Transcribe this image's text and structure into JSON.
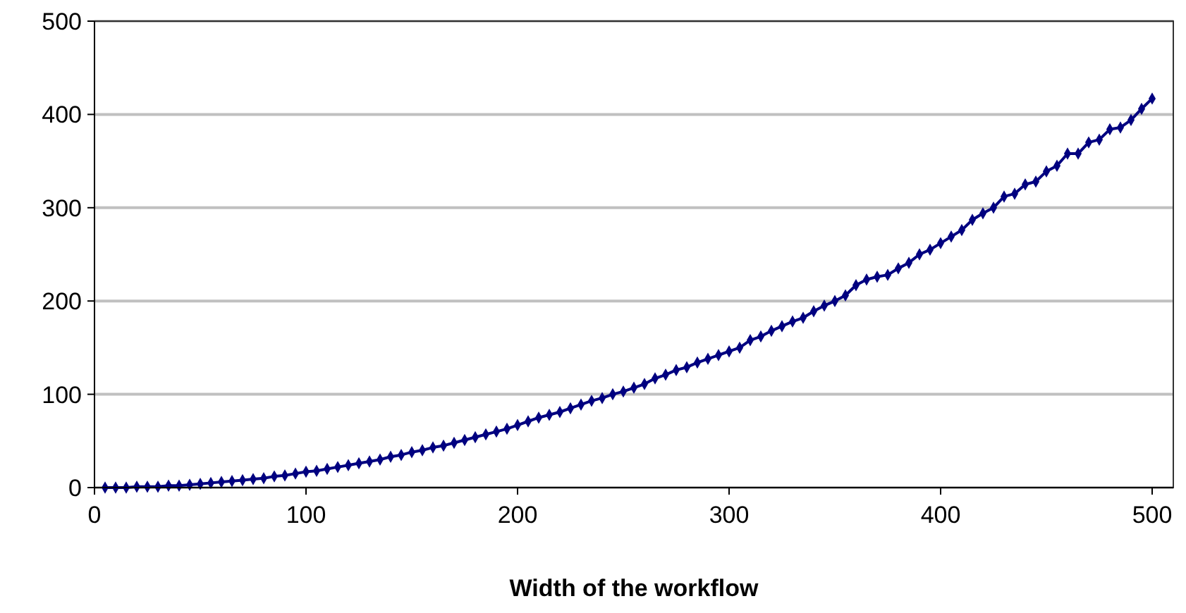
{
  "chart_data": {
    "type": "line",
    "xlabel": "Width of the workflow",
    "x": [
      5,
      10,
      15,
      20,
      25,
      30,
      35,
      40,
      45,
      50,
      55,
      60,
      65,
      70,
      75,
      80,
      85,
      90,
      95,
      100,
      105,
      110,
      115,
      120,
      125,
      130,
      135,
      140,
      145,
      150,
      155,
      160,
      165,
      170,
      175,
      180,
      185,
      190,
      195,
      200,
      205,
      210,
      215,
      220,
      225,
      230,
      235,
      240,
      245,
      250,
      255,
      260,
      265,
      270,
      275,
      280,
      285,
      290,
      295,
      300,
      305,
      310,
      315,
      320,
      325,
      330,
      335,
      340,
      345,
      350,
      355,
      360,
      365,
      370,
      375,
      380,
      385,
      390,
      395,
      400,
      405,
      410,
      415,
      420,
      425,
      430,
      435,
      440,
      445,
      450,
      455,
      460,
      465,
      470,
      475,
      480,
      485,
      490,
      495,
      500
    ],
    "series": [
      {
        "color": "#000080",
        "values": [
          0,
          0,
          0,
          1,
          1,
          1,
          2,
          2,
          3,
          4,
          5,
          6,
          7,
          8,
          9,
          10,
          12,
          13,
          15,
          17,
          18,
          20,
          22,
          24,
          26,
          28,
          30,
          33,
          35,
          38,
          40,
          43,
          45,
          48,
          51,
          54,
          57,
          60,
          63,
          67,
          71,
          75,
          78,
          81,
          85,
          89,
          93,
          96,
          100,
          103,
          107,
          111,
          117,
          121,
          126,
          129,
          134,
          138,
          142,
          146,
          150,
          158,
          162,
          168,
          173,
          178,
          182,
          189,
          195,
          200,
          206,
          217,
          223,
          226,
          228,
          235,
          241,
          250,
          255,
          262,
          269,
          276,
          287,
          294,
          300,
          312,
          315,
          325,
          328,
          339,
          345,
          358,
          358,
          370,
          373,
          384,
          386,
          394,
          406,
          417
        ]
      }
    ],
    "xlim": [
      0,
      510
    ],
    "ylim": [
      0,
      500
    ],
    "xticks": [
      0,
      100,
      200,
      300,
      400,
      500
    ],
    "yticks": [
      0,
      100,
      200,
      300,
      400,
      500
    ],
    "grid": "y",
    "marker": "diamond",
    "line_style": "solid"
  }
}
